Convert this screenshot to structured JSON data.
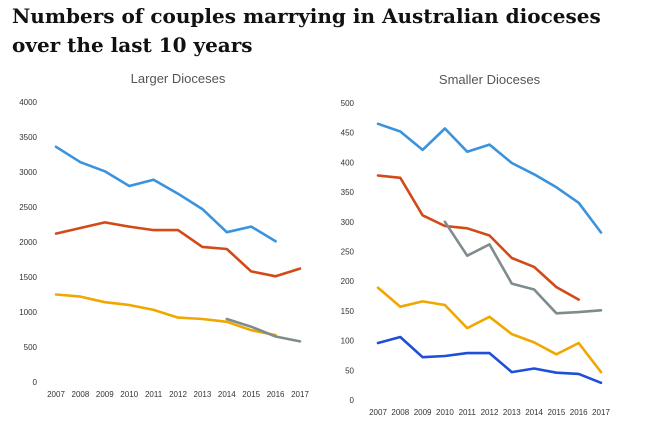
{
  "headline": "Numbers of couples marrying in Australian dioceses over the last 10 years",
  "chart_data": [
    {
      "type": "line",
      "title": "Larger Dioceses",
      "xlabel": "",
      "ylabel": "",
      "x": [
        "2007",
        "2008",
        "2009",
        "2010",
        "2011",
        "2012",
        "2013",
        "2014",
        "2015",
        "2016",
        "2017"
      ],
      "ylim": [
        0,
        4000
      ],
      "yticks": [
        0,
        500,
        1000,
        1500,
        2000,
        2500,
        3000,
        3500,
        4000
      ],
      "grid": false,
      "legend": "none",
      "series": [
        {
          "color": "#3a93dc",
          "values": [
            3360,
            3140,
            3010,
            2800,
            2890,
            2690,
            2470,
            2140,
            2220,
            2010,
            null
          ]
        },
        {
          "color": "#d24a18",
          "values": [
            2120,
            2200,
            2280,
            2220,
            2170,
            2170,
            1930,
            1900,
            1580,
            1510,
            1620
          ]
        },
        {
          "color": "#f0a800",
          "values": [
            1250,
            1220,
            1140,
            1100,
            1030,
            920,
            900,
            860,
            740,
            670,
            null
          ]
        },
        {
          "color": "#7f8c8d",
          "values": [
            null,
            null,
            null,
            null,
            null,
            null,
            null,
            900,
            790,
            650,
            580
          ]
        }
      ]
    },
    {
      "type": "line",
      "title": "Smaller Dioceses",
      "xlabel": "",
      "ylabel": "",
      "x": [
        "2007",
        "2008",
        "2009",
        "2010",
        "2011",
        "2012",
        "2013",
        "2014",
        "2015",
        "2016",
        "2017"
      ],
      "ylim": [
        0,
        500
      ],
      "yticks": [
        0,
        50,
        100,
        150,
        200,
        250,
        300,
        350,
        400,
        450,
        500
      ],
      "grid": false,
      "legend": "none",
      "series": [
        {
          "color": "#3a93dc",
          "values": [
            465,
            452,
            421,
            457,
            418,
            430,
            399,
            380,
            358,
            332,
            282
          ]
        },
        {
          "color": "#d24a18",
          "values": [
            378,
            374,
            311,
            293,
            289,
            277,
            239,
            224,
            190,
            169,
            null
          ]
        },
        {
          "color": "#7f8c8d",
          "values": [
            null,
            null,
            null,
            300,
            243,
            262,
            196,
            186,
            146,
            148,
            151
          ]
        },
        {
          "color": "#f0a800",
          "values": [
            189,
            157,
            166,
            160,
            121,
            140,
            111,
            97,
            77,
            96,
            47
          ]
        },
        {
          "color": "#1f4fd6",
          "values": [
            96,
            106,
            72,
            74,
            79,
            79,
            47,
            53,
            46,
            44,
            29
          ]
        }
      ]
    }
  ]
}
